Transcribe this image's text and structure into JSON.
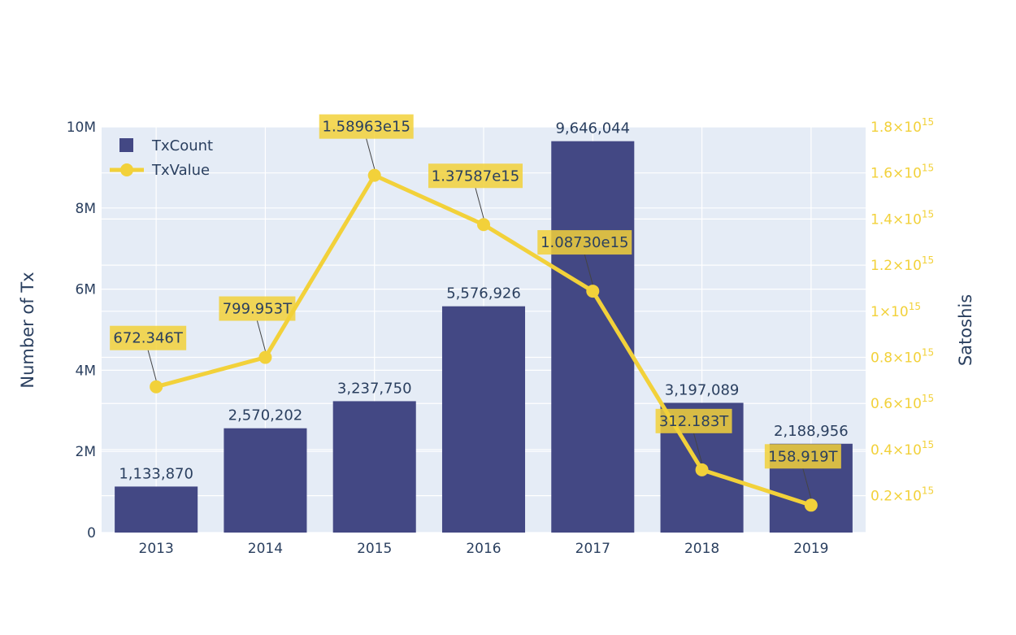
{
  "chart_data": {
    "type": "bar+line",
    "categories": [
      "2013",
      "2014",
      "2015",
      "2016",
      "2017",
      "2018",
      "2019"
    ],
    "series": [
      {
        "name": "TxCount",
        "type": "bar",
        "axis": "left",
        "color": "#434884",
        "values": [
          1133870,
          2570202,
          3237750,
          5576926,
          9646044,
          3197089,
          2188956
        ],
        "labels": [
          "1,133,870",
          "2,570,202",
          "3,237,750",
          "5,576,926",
          "9,646,044",
          "3,197,089",
          "2,188,956"
        ]
      },
      {
        "name": "TxValue",
        "type": "line",
        "axis": "right",
        "color": "#f2d13a",
        "values": [
          672346000000000.0,
          799953000000000.0,
          1589630000000000.0,
          1375870000000000.0,
          1087300000000000.0,
          312183000000000.0,
          158919000000000.0
        ],
        "annotations": [
          "672.346T",
          "799.953T",
          "1.58963e15",
          "1.37587e15",
          "1.08730e15",
          "312.183T",
          "158.919T"
        ]
      }
    ],
    "y_left": {
      "title": "Number of Tx",
      "range": [
        0,
        10000000
      ],
      "ticks": [
        0,
        2000000,
        4000000,
        6000000,
        8000000,
        10000000
      ],
      "tick_labels": [
        "0",
        "2M",
        "4M",
        "6M",
        "8M",
        "10M"
      ]
    },
    "y_right": {
      "title": "Satoshis",
      "range": [
        40000000000000.0,
        1800000000000000.0
      ],
      "ticks": [
        200000000000000.0,
        400000000000000.0,
        600000000000000.0,
        800000000000000.0,
        1000000000000000.0,
        1200000000000000.0,
        1400000000000000.0,
        1600000000000000.0,
        1800000000000000.0
      ],
      "tick_mantissas": [
        "0.2",
        "0.4",
        "0.6",
        "0.8",
        "1",
        "1.2",
        "1.4",
        "1.6",
        "1.8"
      ],
      "tick_times": "×10",
      "tick_exp": "15",
      "color": "#f2d13a"
    },
    "legend": {
      "position": "top-left"
    },
    "grid": true,
    "plot_bg": "#e5ecf6"
  }
}
